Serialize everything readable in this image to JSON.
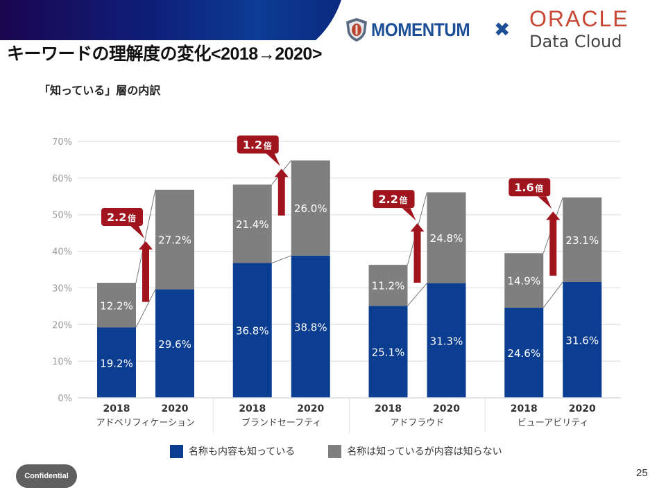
{
  "slide": {
    "title": "キーワードの理解度の変化<2018→2020>",
    "page_number": "25",
    "confidential_label": "Confidential"
  },
  "logos": {
    "momentum": "MOMENTUM",
    "times": "✖",
    "oracle": "ORACLE",
    "oracle_sub": "Data Cloud"
  },
  "colors": {
    "header_dark": "#1a0a55",
    "header_light": "#0d3f96",
    "known_both": "#0b3d91",
    "known_name_only": "#7f7f7f",
    "callout": "#a0141e",
    "grid": "#e6e6e6",
    "axis_text": "#9a9a9a"
  },
  "chart_data": {
    "type": "bar",
    "stacked": true,
    "title": "「知っている」層の内訳",
    "xlabel": "",
    "ylabel": "",
    "ylim": [
      0,
      70
    ],
    "yticks": [
      0,
      10,
      20,
      30,
      40,
      50,
      60,
      70
    ],
    "ytick_labels": [
      "0%",
      "10%",
      "20%",
      "30%",
      "40%",
      "50%",
      "60%",
      "70%"
    ],
    "grid": true,
    "legend_position": "bottom",
    "groups": [
      "アドベリフィケーション",
      "ブランドセーフティ",
      "アドフラウド",
      "ビューアビリティ"
    ],
    "categories": [
      "2018",
      "2020"
    ],
    "series": [
      {
        "name": "名称も内容も知っている",
        "color": "#0b3d91",
        "values": [
          [
            19.2,
            29.6
          ],
          [
            36.8,
            38.8
          ],
          [
            25.1,
            31.3
          ],
          [
            24.6,
            31.6
          ]
        ],
        "labels": [
          [
            "19.2%",
            "29.6%"
          ],
          [
            "36.8%",
            "38.8%"
          ],
          [
            "25.1%",
            "31.3%"
          ],
          [
            "24.6%",
            "31.6%"
          ]
        ]
      },
      {
        "name": "名称は知っているが内容は知らない",
        "color": "#7f7f7f",
        "values": [
          [
            12.2,
            27.2
          ],
          [
            21.4,
            26.0
          ],
          [
            11.2,
            24.8
          ],
          [
            14.9,
            23.1
          ]
        ],
        "labels": [
          [
            "12.2%",
            "27.2%"
          ],
          [
            "21.4%",
            "26.0%"
          ],
          [
            "11.2%",
            "24.8%"
          ],
          [
            "14.9%",
            "23.1%"
          ]
        ]
      }
    ],
    "annotations": [
      {
        "group": 0,
        "multiplier": "2.2",
        "unit": "倍"
      },
      {
        "group": 1,
        "multiplier": "1.2",
        "unit": "倍"
      },
      {
        "group": 2,
        "multiplier": "2.2",
        "unit": "倍"
      },
      {
        "group": 3,
        "multiplier": "1.6",
        "unit": "倍"
      }
    ]
  }
}
